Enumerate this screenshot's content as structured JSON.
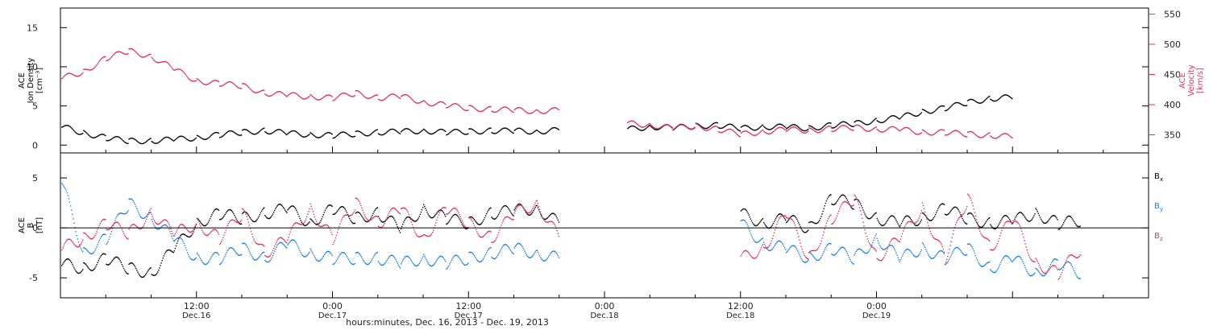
{
  "chart_data": [
    {
      "type": "scatter",
      "ylabel_left_lines": [
        "ACE",
        "Ion Density",
        "[cm⁻³]"
      ],
      "ylabel_right_lines": [
        "ACE",
        "Velocity",
        "[km/s]"
      ],
      "ylim_left": [
        -1,
        17.5
      ],
      "ylim_right": [
        320,
        560
      ],
      "yticks_left": [
        0,
        5,
        10,
        15
      ],
      "yticks_right": [
        350,
        400,
        450,
        500,
        550
      ],
      "colors": {
        "density": "#000000",
        "velocity": "#e0325e"
      },
      "series": [
        {
          "name": "",
          "axis": "left",
          "color": "#000000",
          "x": [
            0,
            2,
            4,
            6,
            8,
            10,
            12,
            14,
            16,
            18,
            20,
            22,
            24,
            26,
            28,
            30,
            32,
            34,
            36,
            38,
            40,
            42,
            44,
            46,
            48,
            50,
            52,
            54,
            56,
            58,
            60,
            62,
            64,
            66,
            68,
            70,
            72,
            74,
            76,
            78,
            80,
            82,
            84
          ],
          "y": [
            2.5,
            1.6,
            1.0,
            0.6,
            0.6,
            0.8,
            1.0,
            1.4,
            1.7,
            1.9,
            1.6,
            1.4,
            1.3,
            1.5,
            1.7,
            1.8,
            1.9,
            1.7,
            1.8,
            1.9,
            1.9,
            1.8,
            2.0,
            null,
            null,
            2.1,
            2.4,
            2.3,
            2.5,
            2.6,
            2.2,
            2.4,
            2.4,
            2.2,
            2.6,
            2.8,
            3.2,
            3.6,
            4.3,
            4.8,
            5.5,
            6.0,
            6.2
          ]
        },
        {
          "name": "",
          "axis": "right",
          "color": "#e0325e",
          "x": [
            0,
            2,
            4,
            6,
            8,
            10,
            12,
            14,
            16,
            18,
            20,
            22,
            24,
            26,
            28,
            30,
            32,
            34,
            36,
            38,
            40,
            42,
            44,
            46,
            48,
            50,
            52,
            54,
            56,
            58,
            60,
            62,
            64,
            66,
            68,
            70,
            72,
            74,
            76,
            78,
            80,
            82,
            84
          ],
          "y": [
            445,
            455,
            478,
            490,
            480,
            460,
            440,
            436,
            432,
            420,
            417,
            414,
            412,
            420,
            412,
            415,
            405,
            400,
            395,
            393,
            392,
            390,
            392,
            null,
            null,
            370,
            367,
            362,
            365,
            360,
            352,
            356,
            360,
            358,
            361,
            363,
            360,
            360,
            355,
            355,
            352,
            350,
            348
          ]
        }
      ]
    },
    {
      "type": "scatter",
      "ylabel_left_lines": [
        "ACE",
        "B",
        "[nT]"
      ],
      "ylim": [
        -7,
        7.5
      ],
      "yticks": [
        -5,
        0,
        5
      ],
      "legend": [
        {
          "base": "B",
          "sub": "x",
          "color": "#000000"
        },
        {
          "base": "B",
          "sub": "y",
          "color": "#1a82dc"
        },
        {
          "base": "B",
          "sub": "z",
          "color": "#e0325e"
        }
      ],
      "series": [
        {
          "name": "Bx",
          "color": "#000000",
          "x": [
            0,
            2,
            4,
            6,
            8,
            10,
            12,
            14,
            16,
            18,
            20,
            22,
            24,
            26,
            28,
            30,
            32,
            34,
            36,
            38,
            40,
            42,
            44,
            46,
            48,
            50,
            52,
            54,
            56,
            58,
            60,
            62,
            64,
            66,
            68,
            70,
            72,
            74,
            76,
            78,
            80,
            82,
            84,
            86,
            88,
            90
          ],
          "y": [
            -3.5,
            -4.0,
            -3.0,
            -4.0,
            -4.5,
            -2.0,
            0.5,
            1.5,
            1.0,
            1.5,
            2.0,
            0.5,
            2.0,
            1.0,
            1.5,
            0.0,
            2.0,
            1.0,
            0.5,
            1.5,
            1.8,
            2.0,
            0.5,
            null,
            null,
            null,
            null,
            null,
            null,
            null,
            1.5,
            0.5,
            1.0,
            0.0,
            3.0,
            2.5,
            1.0,
            0.5,
            1.0,
            2.0,
            1.0,
            0.5,
            0.8,
            1.5,
            0.5,
            0.8
          ]
        },
        {
          "name": "By",
          "color": "#1a82dc",
          "x": [
            0,
            2,
            4,
            6,
            8,
            10,
            12,
            14,
            16,
            18,
            20,
            22,
            24,
            26,
            28,
            30,
            32,
            34,
            36,
            38,
            40,
            42,
            44,
            46,
            48,
            50,
            52,
            54,
            56,
            58,
            60,
            62,
            64,
            66,
            68,
            70,
            72,
            74,
            76,
            78,
            80,
            82,
            84,
            86,
            88,
            90
          ],
          "y": [
            5.0,
            -2.5,
            -1.0,
            2.5,
            1.0,
            -1.0,
            -3.0,
            -3.0,
            -2.0,
            -3.0,
            -1.5,
            -2.5,
            -3.0,
            -3.0,
            -3.0,
            -3.5,
            -3.0,
            -3.5,
            -3.0,
            -2.5,
            -2.0,
            -2.5,
            -3.0,
            null,
            null,
            null,
            null,
            null,
            null,
            null,
            0.5,
            -1.5,
            -2.0,
            -3.0,
            -2.0,
            -3.0,
            -1.0,
            -3.0,
            -2.0,
            -3.0,
            -2.0,
            -4.0,
            -3.0,
            -4.5,
            -3.5,
            -4.5
          ]
        },
        {
          "name": "Bz",
          "color": "#e0325e",
          "x": [
            0,
            2,
            4,
            6,
            8,
            10,
            12,
            14,
            16,
            18,
            20,
            22,
            24,
            26,
            28,
            30,
            32,
            34,
            36,
            38,
            40,
            42,
            44,
            46,
            48,
            50,
            52,
            54,
            56,
            58,
            60,
            62,
            64,
            66,
            68,
            70,
            72,
            74,
            76,
            78,
            80,
            82,
            84,
            86,
            88,
            90
          ],
          "y": [
            -2.0,
            -1.0,
            0.5,
            -0.5,
            1.5,
            -0.5,
            0.5,
            -1.0,
            1.5,
            -2.5,
            -1.0,
            2.0,
            -1.0,
            2.5,
            0.5,
            2.0,
            -1.0,
            2.0,
            0.5,
            -1.0,
            1.5,
            2.5,
            -1.0,
            null,
            null,
            null,
            null,
            null,
            null,
            null,
            -3.0,
            -2.0,
            1.5,
            -3.0,
            1.0,
            3.0,
            -3.0,
            -1.0,
            2.0,
            -3.0,
            3.0,
            -2.0,
            1.0,
            -3.5,
            -4.5,
            -2.0
          ]
        }
      ]
    }
  ],
  "x_axis": {
    "ticks": [
      {
        "time": "12:00",
        "date": "Dec.16"
      },
      {
        "time": "0:00",
        "date": "Dec.17"
      },
      {
        "time": "12:00",
        "date": "Dec.17"
      },
      {
        "time": "0:00",
        "date": "Dec.18"
      },
      {
        "time": "12:00",
        "date": "Dec.18"
      },
      {
        "time": "0:00",
        "date": "Dec.19"
      }
    ],
    "title": "hours:minutes, Dec. 16, 2013 - Dec. 19, 2013"
  }
}
